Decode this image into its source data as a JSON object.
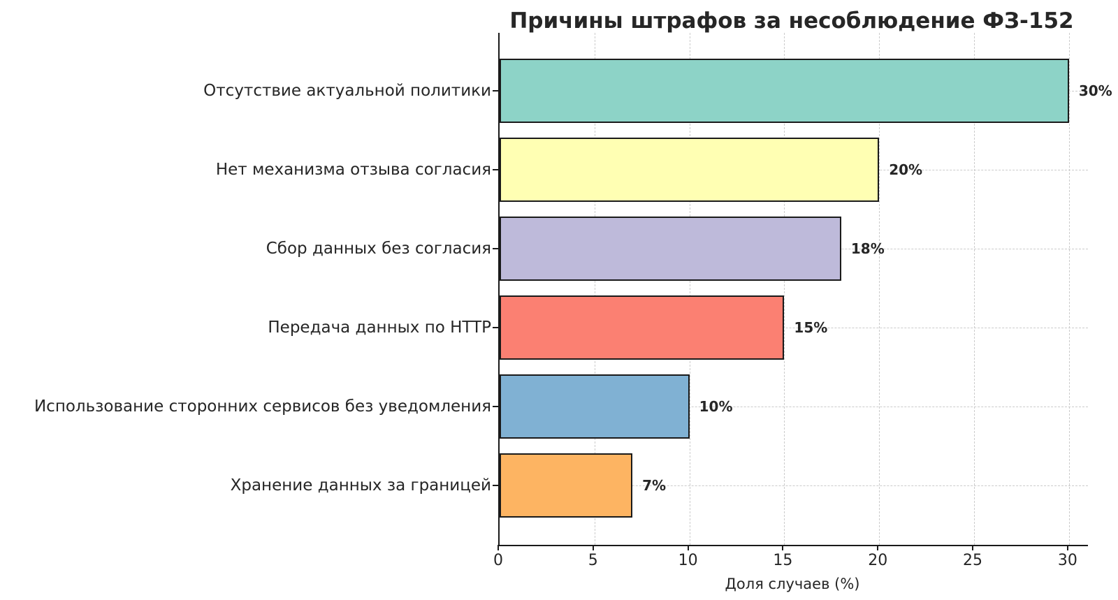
{
  "chart_data": {
    "type": "bar",
    "orientation": "horizontal",
    "title": "Причины штрафов за несоблюдение ФЗ-152",
    "xlabel": "Доля случаев (%)",
    "categories": [
      "Отсутствие актуальной политики",
      "Нет механизма отзыва согласия",
      "Сбор данных без согласия",
      "Передача данных по HTTP",
      "Использование сторонних сервисов без уведомления",
      "Хранение данных за границей"
    ],
    "values": [
      30,
      20,
      18,
      15,
      10,
      7
    ],
    "value_labels": [
      "30%",
      "20%",
      "18%",
      "15%",
      "10%",
      "7%"
    ],
    "bar_colors": [
      "#8dd3c7",
      "#ffffb3",
      "#bebada",
      "#fb8072",
      "#80b1d3",
      "#fdb462"
    ],
    "bar_edge_color": "#1a1a1a",
    "xticks": [
      0,
      5,
      10,
      15,
      20,
      25,
      30
    ],
    "xlim": [
      0,
      31
    ],
    "grid": {
      "style": "dashed",
      "color": "#cbcbcb",
      "vertical": true,
      "horizontal": true
    },
    "legend": null,
    "background": "#ffffff",
    "text_color": "#262626"
  }
}
